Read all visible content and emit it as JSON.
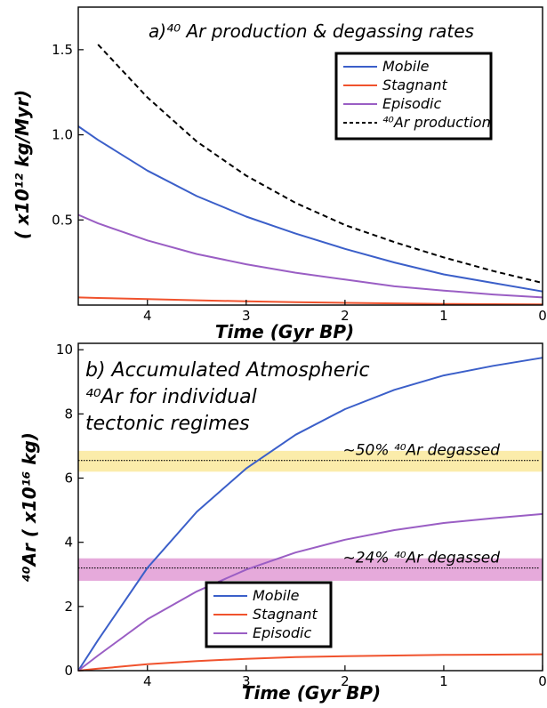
{
  "chart_data": [
    {
      "type": "line",
      "title": "a)⁴⁰ Ar production & degassing rates",
      "xlabel": "Time  (Gyr BP)",
      "ylabel": "( x10¹² kg/Myr)",
      "xlim": [
        4.7,
        0
      ],
      "ylim": [
        0,
        1.75
      ],
      "x_ticks": [
        4,
        3,
        2,
        1,
        0
      ],
      "y_ticks": [
        0.5,
        1.0,
        1.5
      ],
      "legend_position": "top-right",
      "x": [
        4.7,
        4.5,
        4.0,
        3.5,
        3.0,
        2.5,
        2.0,
        1.5,
        1.0,
        0.5,
        0.0
      ],
      "series": [
        {
          "name": "Mobile",
          "color": "#3b5fc9",
          "style": "solid",
          "values": [
            1.05,
            0.97,
            0.79,
            0.64,
            0.52,
            0.42,
            0.33,
            0.25,
            0.18,
            0.13,
            0.08
          ]
        },
        {
          "name": "Stagnant",
          "color": "#f0522d",
          "style": "solid",
          "values": [
            0.045,
            0.042,
            0.035,
            0.028,
            0.022,
            0.017,
            0.013,
            0.01,
            0.007,
            0.005,
            0.004
          ]
        },
        {
          "name": "Episodic",
          "color": "#9a5ec4",
          "style": "solid",
          "values": [
            0.53,
            0.48,
            0.38,
            0.3,
            0.24,
            0.19,
            0.15,
            0.11,
            0.085,
            0.062,
            0.045
          ]
        },
        {
          "name": "⁴⁰Ar production",
          "color": "#000000",
          "style": "dashed",
          "x": [
            4.5,
            4.0,
            3.5,
            3.0,
            2.5,
            2.0,
            1.5,
            1.0,
            0.5,
            0.0
          ],
          "values": [
            1.53,
            1.22,
            0.96,
            0.76,
            0.6,
            0.47,
            0.37,
            0.28,
            0.2,
            0.13
          ]
        }
      ]
    },
    {
      "type": "line",
      "title": "b) Accumulated Atmospheric ⁴⁰Ar for individual tectonic regimes",
      "title_lines": [
        "b) Accumulated Atmospheric",
        "⁴⁰Ar for individual",
        "tectonic regimes"
      ],
      "xlabel": "Time  (Gyr BP)",
      "ylabel": "⁴⁰Ar ( x10¹⁶ kg)",
      "xlim": [
        4.7,
        0
      ],
      "ylim": [
        0,
        10.2
      ],
      "x_ticks": [
        4,
        3,
        2,
        1,
        0
      ],
      "y_ticks": [
        0,
        2,
        4,
        6,
        8,
        10
      ],
      "legend_position": "bottom-left",
      "x": [
        4.7,
        4.5,
        4.0,
        3.5,
        3.0,
        2.5,
        2.0,
        1.5,
        1.0,
        0.5,
        0.0
      ],
      "series": [
        {
          "name": "Mobile",
          "color": "#3b5fc9",
          "style": "solid",
          "values": [
            0.0,
            0.95,
            3.2,
            4.95,
            6.3,
            7.35,
            8.15,
            8.75,
            9.2,
            9.5,
            9.75
          ]
        },
        {
          "name": "Stagnant",
          "color": "#f0522d",
          "style": "solid",
          "values": [
            0.0,
            0.06,
            0.2,
            0.3,
            0.37,
            0.42,
            0.45,
            0.47,
            0.49,
            0.5,
            0.51
          ]
        },
        {
          "name": "Episodic",
          "color": "#9a5ec4",
          "style": "solid",
          "values": [
            0.0,
            0.47,
            1.6,
            2.47,
            3.15,
            3.68,
            4.08,
            4.38,
            4.6,
            4.75,
            4.88
          ]
        }
      ],
      "bands": [
        {
          "label": "~50% ⁴⁰Ar degassed",
          "value": 6.55,
          "range": [
            6.2,
            6.85
          ],
          "color": "#fbecaa"
        },
        {
          "label": "~24% ⁴⁰Ar degassed",
          "value": 3.2,
          "range": [
            2.8,
            3.5
          ],
          "color": "#e6aadb"
        }
      ]
    }
  ]
}
